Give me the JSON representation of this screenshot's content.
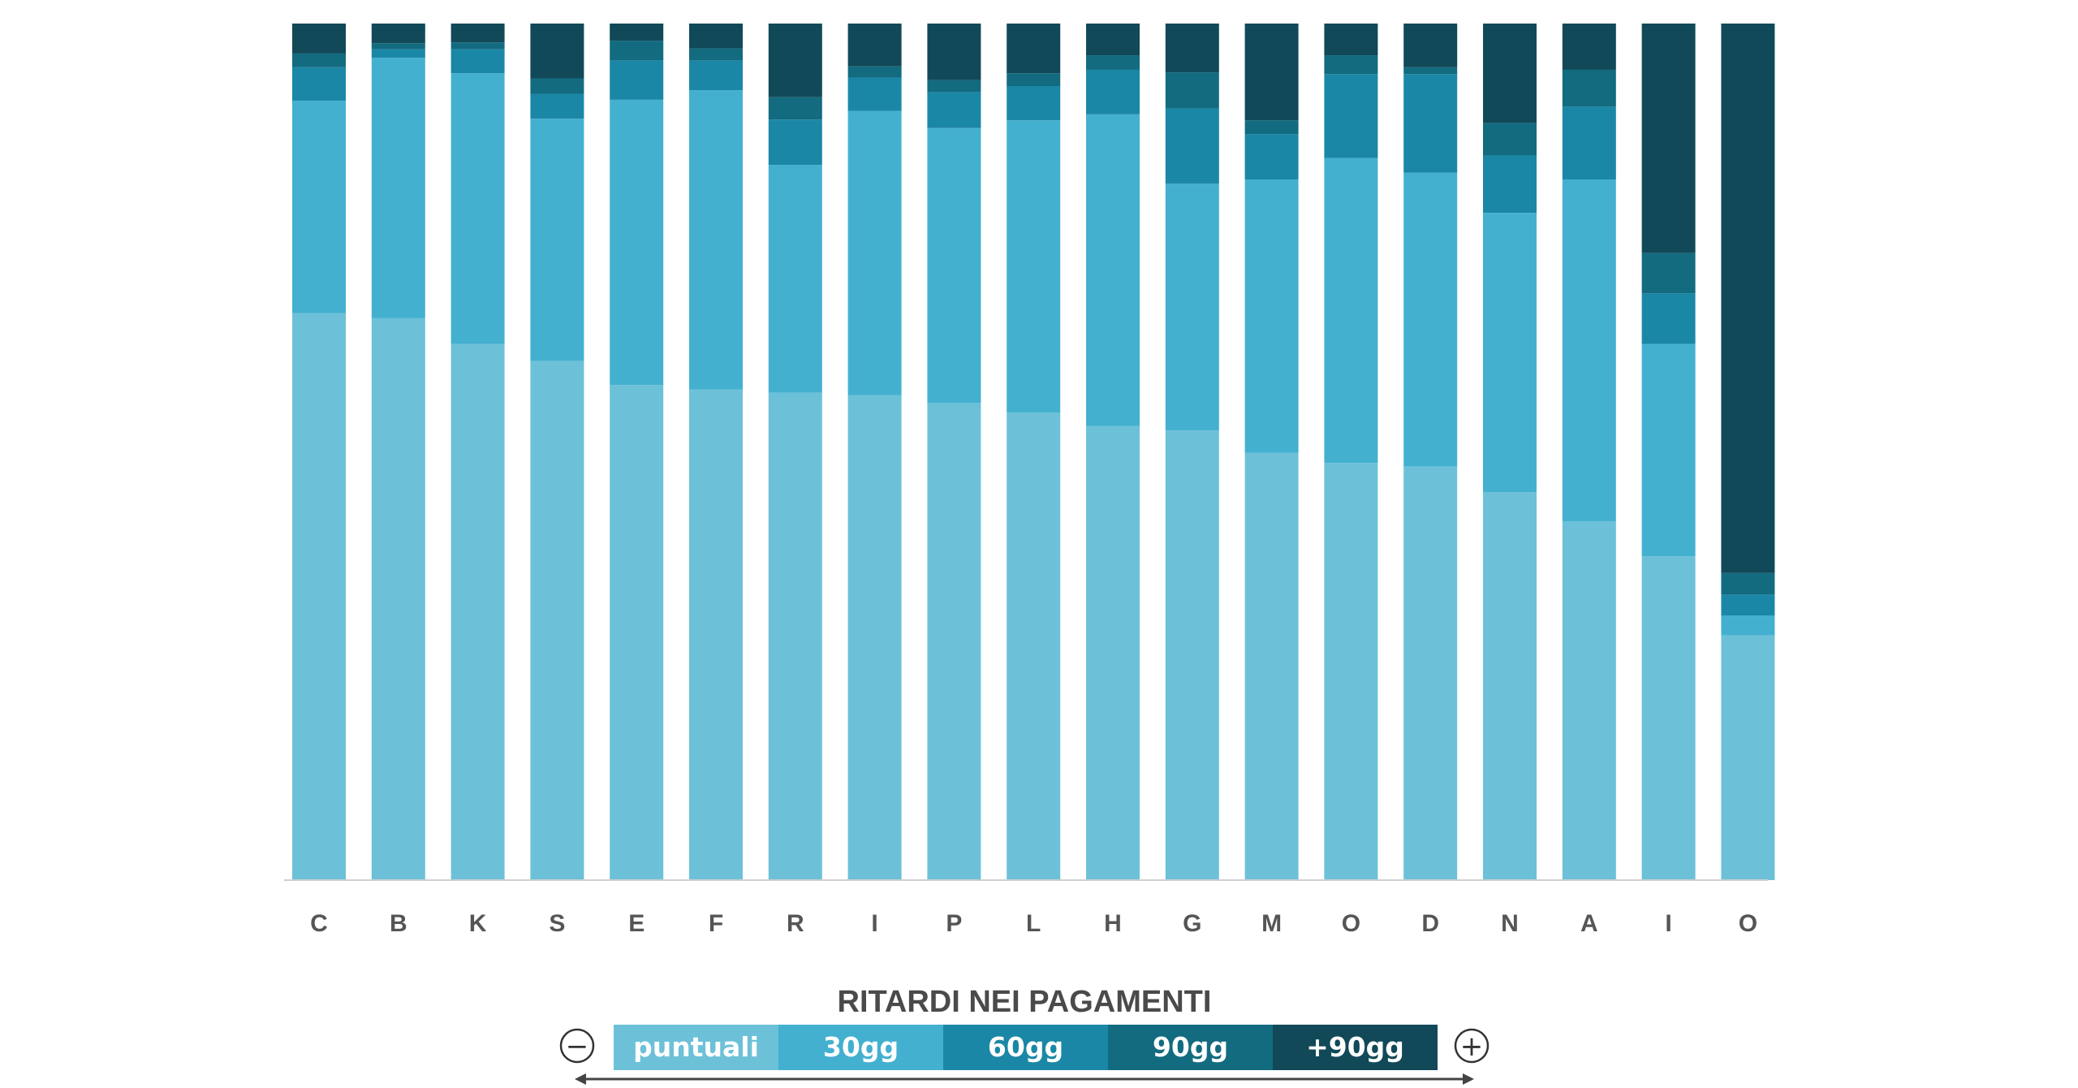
{
  "chart_data": {
    "type": "bar",
    "stacked": true,
    "normalized": true,
    "categories": [
      "C",
      "B",
      "K",
      "S",
      "E",
      "F",
      "R",
      "I",
      "P",
      "L",
      "H",
      "G",
      "M",
      "O",
      "D",
      "N",
      "A",
      "I",
      "O"
    ],
    "series": [
      {
        "name": "puntuali",
        "color": "#6cc1d8",
        "values": [
          66.2,
          65.6,
          62.6,
          60.6,
          57.8,
          57.3,
          56.9,
          56.6,
          55.7,
          54.6,
          53.0,
          52.5,
          49.9,
          48.7,
          48.3,
          45.3,
          41.9,
          37.8,
          29.3
        ]
      },
      {
        "name": "30gg",
        "color": "#44b0d0",
        "values": [
          24.8,
          30.4,
          31.6,
          28.3,
          33.3,
          34.9,
          26.6,
          33.2,
          32.1,
          34.1,
          36.4,
          28.8,
          31.9,
          35.6,
          34.3,
          32.6,
          39.9,
          24.8,
          2.4
        ]
      },
      {
        "name": "60gg",
        "color": "#1b87a6",
        "values": [
          3.9,
          1.0,
          2.8,
          2.9,
          4.6,
          3.5,
          5.3,
          3.9,
          4.2,
          4.0,
          5.2,
          8.8,
          5.3,
          9.8,
          11.5,
          6.7,
          8.5,
          5.9,
          2.5
        ]
      },
      {
        "name": "90gg",
        "color": "#136b80",
        "values": [
          1.6,
          0.7,
          0.8,
          1.8,
          2.3,
          1.4,
          2.6,
          1.3,
          1.4,
          1.5,
          1.7,
          4.2,
          1.6,
          2.2,
          0.8,
          3.8,
          4.3,
          4.7,
          2.6
        ]
      },
      {
        "name": "+90gg",
        "color": "#114958",
        "values": [
          3.5,
          2.3,
          2.2,
          6.4,
          2.0,
          2.9,
          8.6,
          5.0,
          6.6,
          5.8,
          3.7,
          5.7,
          11.3,
          3.7,
          5.1,
          11.6,
          5.4,
          26.8,
          65.8
        ]
      }
    ],
    "ylim": [
      0,
      100
    ],
    "legend": {
      "title": "RITARDI NEI PAGAMENTI",
      "position": "bottom-center",
      "minus_symbol": "−",
      "plus_symbol": "+"
    }
  }
}
